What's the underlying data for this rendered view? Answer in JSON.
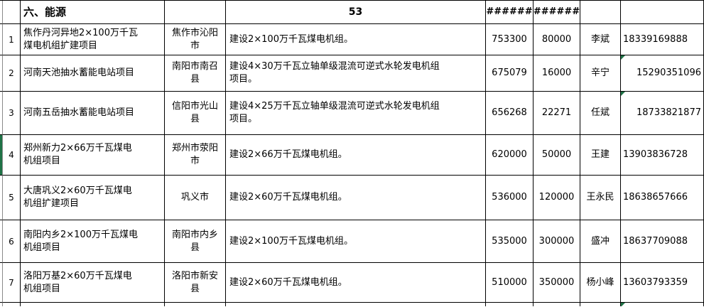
{
  "table": {
    "header": {
      "section_title": "六、能源",
      "count": "53",
      "overflow_left": "######",
      "overflow_right": "######"
    },
    "colors": {
      "grid": "#000000",
      "flag_green": "#1F7246",
      "background": "#FFFFFF"
    },
    "rows": [
      {
        "num": "1",
        "name_lines": [
          "焦作丹河异地2×100万千瓦",
          "煤电机组扩建项目"
        ],
        "location_lines": [
          "焦作市沁阳",
          "市"
        ],
        "desc_lines": [
          "建设2×100万千瓦煤电机组。"
        ],
        "val1": "753300",
        "val2": "80000",
        "contact": "李斌",
        "phone": "18339169888",
        "phone_align": "left",
        "phone_error_flag": false,
        "row_marker": false
      },
      {
        "num": "2",
        "name_lines": [
          "河南天池抽水蓄能电站项目"
        ],
        "location_lines": [
          "南阳市南召",
          "县"
        ],
        "desc_lines": [
          "建设4×30万千瓦立轴单级混流可逆式水轮发电机组",
          "项目。"
        ],
        "val1": "675079",
        "val2": "16000",
        "contact": "辛宁",
        "phone": "15290351096",
        "phone_align": "right",
        "phone_error_flag": true,
        "row_marker": false
      },
      {
        "num": "3",
        "name_lines": [
          "河南五岳抽水蓄能电站项目"
        ],
        "location_lines": [
          "信阳市光山",
          "县"
        ],
        "desc_lines": [
          "建设4×25万千瓦立轴单级混流可逆式水轮发电机组",
          "项目。"
        ],
        "val1": "656268",
        "val2": "22271",
        "contact": "任斌",
        "phone": "18733821877",
        "phone_align": "right",
        "phone_error_flag": true,
        "row_marker": false
      },
      {
        "num": "4",
        "name_lines": [
          "郑州新力2×66万千瓦煤电",
          "机组项目"
        ],
        "location_lines": [
          "郑州市荥阳",
          "市"
        ],
        "desc_lines": [
          "建设2×66万千瓦煤电机组。"
        ],
        "val1": "620000",
        "val2": "50000",
        "contact": "王建",
        "phone": "13903836728",
        "phone_align": "left",
        "phone_error_flag": false,
        "row_marker": true
      },
      {
        "num": "5",
        "name_lines": [
          "大唐巩义2×60万千瓦煤电",
          "机组扩建项目"
        ],
        "location_lines": [
          "巩义市"
        ],
        "desc_lines": [
          "建设2×60万千瓦煤电机组。"
        ],
        "val1": "536000",
        "val2": "120000",
        "contact": "王永民",
        "phone": "18638657666",
        "phone_align": "left",
        "phone_error_flag": false,
        "row_marker": false
      },
      {
        "num": "6",
        "name_lines": [
          "南阳内乡2×100万千瓦煤电",
          "机组项目"
        ],
        "location_lines": [
          "南阳市内乡",
          "县"
        ],
        "desc_lines": [
          "建设2×100万千瓦煤电机组。"
        ],
        "val1": "535000",
        "val2": "300000",
        "contact": "盛冲",
        "phone": "18637709088",
        "phone_align": "left",
        "phone_error_flag": false,
        "row_marker": false
      },
      {
        "num": "7",
        "name_lines": [
          "洛阳万基2×60万千瓦煤电",
          "机组项目"
        ],
        "location_lines": [
          "洛阳市新安",
          "县"
        ],
        "desc_lines": [
          "建设2×60万千瓦煤电机组。"
        ],
        "val1": "510000",
        "val2": "350000",
        "contact": "杨小峰",
        "phone": "13603793359",
        "phone_align": "left",
        "phone_error_flag": false,
        "row_marker": false
      }
    ],
    "partial_row": {
      "phone_error_flag": true
    }
  }
}
